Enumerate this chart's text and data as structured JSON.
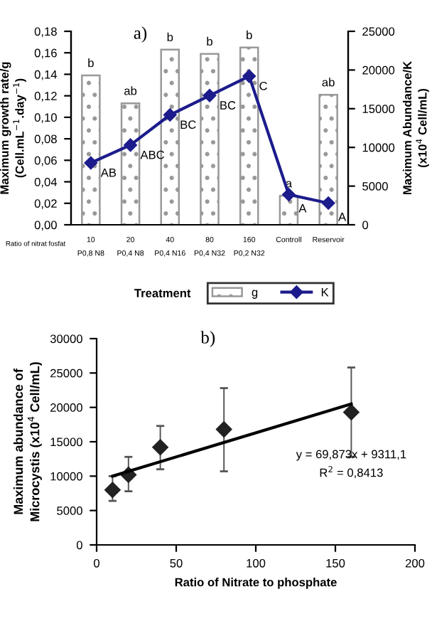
{
  "chart_data": [
    {
      "type": "bar",
      "title": "a)",
      "xlabel": "Treatment",
      "ylabel": "Maximum growth rate/g\n(Cell.mL$^{−1}$.day$^{−1}$)",
      "y2label": "Maximum Abundance/K\n(x10$^{4}$ Cell/mL)",
      "categories": [
        "10\nP0,8 N8",
        "20\nP0,4 N8",
        "40\nP0,4 N16",
        "80\nP0,4 N32",
        "160\nP0,2 N32",
        "Controll",
        "Reservoir"
      ],
      "series": [
        {
          "name": "g",
          "color": "#999999",
          "values": [
            0.139,
            0.113,
            0.163,
            0.159,
            0.165,
            0.027,
            0.121
          ],
          "value_labels": [
            "b",
            "ab",
            "b",
            "b",
            "b",
            "a",
            "ab"
          ]
        },
        {
          "name": "K",
          "type": "line",
          "axis": "y2",
          "color": "#1c1c8c",
          "marker": "diamond",
          "values": [
            8000,
            10300,
            14200,
            16700,
            19200,
            3900,
            2800
          ],
          "value_labels": [
            "AB",
            "ABC",
            "BC",
            "BC",
            "C",
            "A",
            "A"
          ]
        }
      ],
      "ylim": [
        0,
        0.18
      ],
      "yticks": [
        {
          "value": 0,
          "label": "0,00"
        },
        {
          "value": 0.02,
          "label": "0,02"
        },
        {
          "value": 0.04,
          "label": "0,04"
        },
        {
          "value": 0.06,
          "label": "0,06"
        },
        {
          "value": 0.08,
          "label": "0,08"
        },
        {
          "value": 0.1,
          "label": "0,10"
        },
        {
          "value": 0.12,
          "label": "0,12"
        },
        {
          "value": 0.14,
          "label": "0,14"
        },
        {
          "value": 0.16,
          "label": "0,16"
        },
        {
          "value": 0.18,
          "label": "0,18"
        }
      ],
      "y2lim": [
        0,
        25000
      ],
      "y2ticks": [
        0,
        5000,
        10000,
        15000,
        20000,
        25000
      ],
      "annotations": [
        "Ratio of nitrat fosfat"
      ],
      "legend": "bottom",
      "grid": false
    },
    {
      "type": "scatter",
      "title": "b)",
      "xlabel": "Ratio of Nitrate to phosphate",
      "ylabel": "Maximum abundance of\nMicrocystis (x10$^{4}$ Cell/mL)",
      "series": [
        {
          "color": "#222222",
          "marker": "diamond",
          "x": [
            10,
            20,
            40,
            80,
            160
          ],
          "values": [
            8000,
            10200,
            14200,
            16800,
            19300
          ],
          "errors": [
            [
              6400,
              10000
            ],
            [
              7800,
              12800
            ],
            [
              11000,
              17300
            ],
            [
              10700,
              22800
            ],
            [
              12800,
              25800
            ]
          ]
        },
        {
          "type": "line",
          "color": "#000000",
          "x": [
            10,
            160
          ],
          "values": [
            10000,
            20500
          ]
        }
      ],
      "xlim": [
        0,
        200
      ],
      "xticks": [
        0,
        50,
        100,
        150,
        200
      ],
      "ylim": [
        0,
        30000
      ],
      "yticks": [
        0,
        5000,
        10000,
        15000,
        20000,
        25000,
        30000
      ],
      "annotations": [
        "y = 69,873x + 9311,1",
        "R$^{2}$ = 0,8413"
      ],
      "grid": false
    }
  ]
}
